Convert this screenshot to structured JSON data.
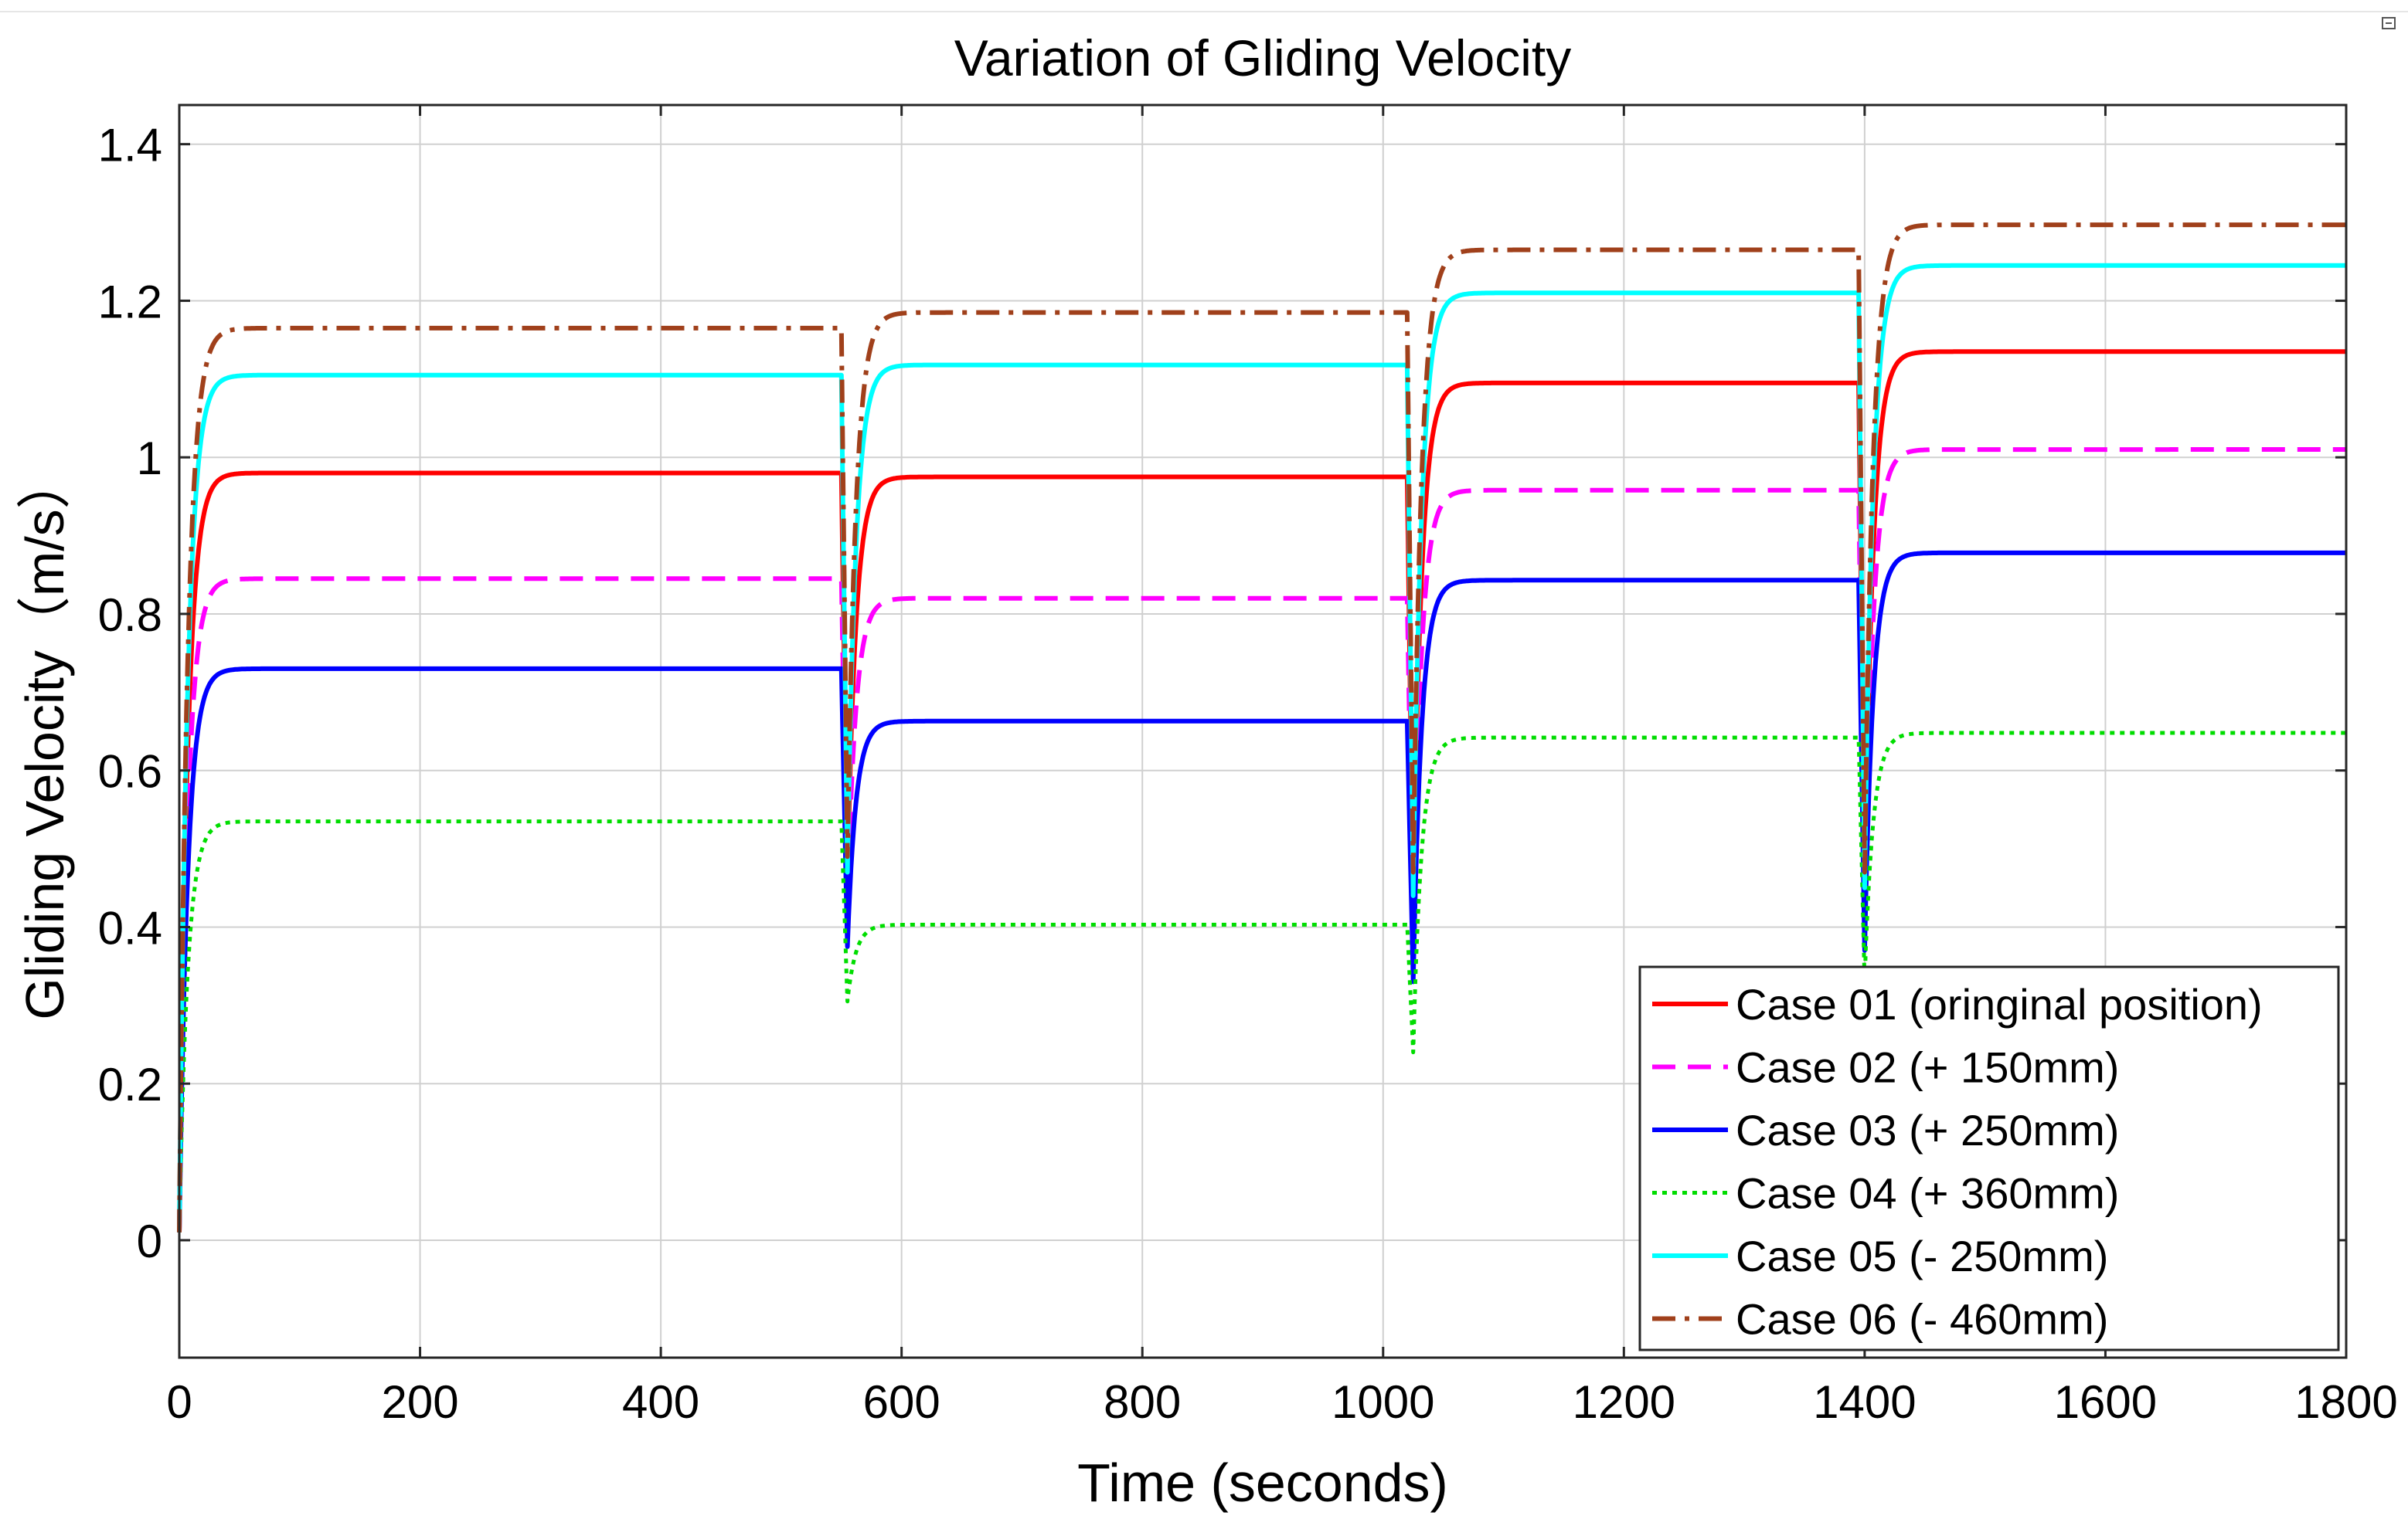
{
  "chart_data": {
    "type": "line",
    "title": "Variation of Gliding Velocity",
    "xlabel": "Time (seconds)",
    "ylabel": "Gliding Velocity（m/s）",
    "xlim": [
      0,
      1800
    ],
    "ylim": [
      -0.15,
      1.45
    ],
    "xticks": [
      0,
      200,
      400,
      600,
      800,
      1000,
      1200,
      1400,
      1600,
      1800
    ],
    "xtick_labels": [
      "0",
      "200",
      "400",
      "600",
      "800",
      "1000",
      "1200",
      "1400",
      "1600",
      "1800"
    ],
    "yticks": [
      0,
      0.2,
      0.4,
      0.6,
      0.8,
      1.0,
      1.2,
      1.4
    ],
    "ytick_labels": [
      "0",
      "0.2",
      "0.4",
      "0.6",
      "0.8",
      "1",
      "1.2",
      "1.4"
    ],
    "grid": true,
    "legend_position": "bottom-right",
    "segment_times": [
      {
        "t_start": 0,
        "t_end": 550
      },
      {
        "t_start": 555,
        "t_end": 1020
      },
      {
        "t_start": 1025,
        "t_end": 1395
      },
      {
        "t_start": 1400,
        "t_end": 1800
      }
    ],
    "series": [
      {
        "name": "Case 01 (oringinal position)",
        "color": "#ff0000",
        "dash": "solid",
        "plateaus": [
          0.98,
          0.975,
          1.095,
          1.135
        ],
        "dips": [
          0.455,
          0.42,
          0.43
        ]
      },
      {
        "name": "Case 02 (+ 150mm)",
        "color": "#ff00ff",
        "dash": "dashed",
        "plateaus": [
          0.845,
          0.82,
          0.958,
          1.01
        ],
        "dips": [
          0.43,
          0.4,
          0.41
        ]
      },
      {
        "name": "Case 03 (+ 250mm)",
        "color": "#0000ff",
        "dash": "solid",
        "plateaus": [
          0.73,
          0.663,
          0.843,
          0.878
        ],
        "dips": [
          0.375,
          0.33,
          0.37
        ]
      },
      {
        "name": "Case 04 (+ 360mm)",
        "color": "#00dd00",
        "dash": "dotted",
        "plateaus": [
          0.535,
          0.403,
          0.642,
          0.648
        ],
        "dips": [
          0.305,
          0.24,
          0.33
        ]
      },
      {
        "name": "Case 05 (- 250mm)",
        "color": "#00ffff",
        "dash": "solid",
        "plateaus": [
          1.105,
          1.118,
          1.21,
          1.245
        ],
        "dips": [
          0.47,
          0.44,
          0.45
        ]
      },
      {
        "name": "Case 06 (- 460mm)",
        "color": "#a0401b",
        "dash": "dashdot",
        "plateaus": [
          1.165,
          1.185,
          1.265,
          1.297
        ],
        "dips": [
          0.49,
          0.47,
          0.47
        ]
      }
    ]
  }
}
